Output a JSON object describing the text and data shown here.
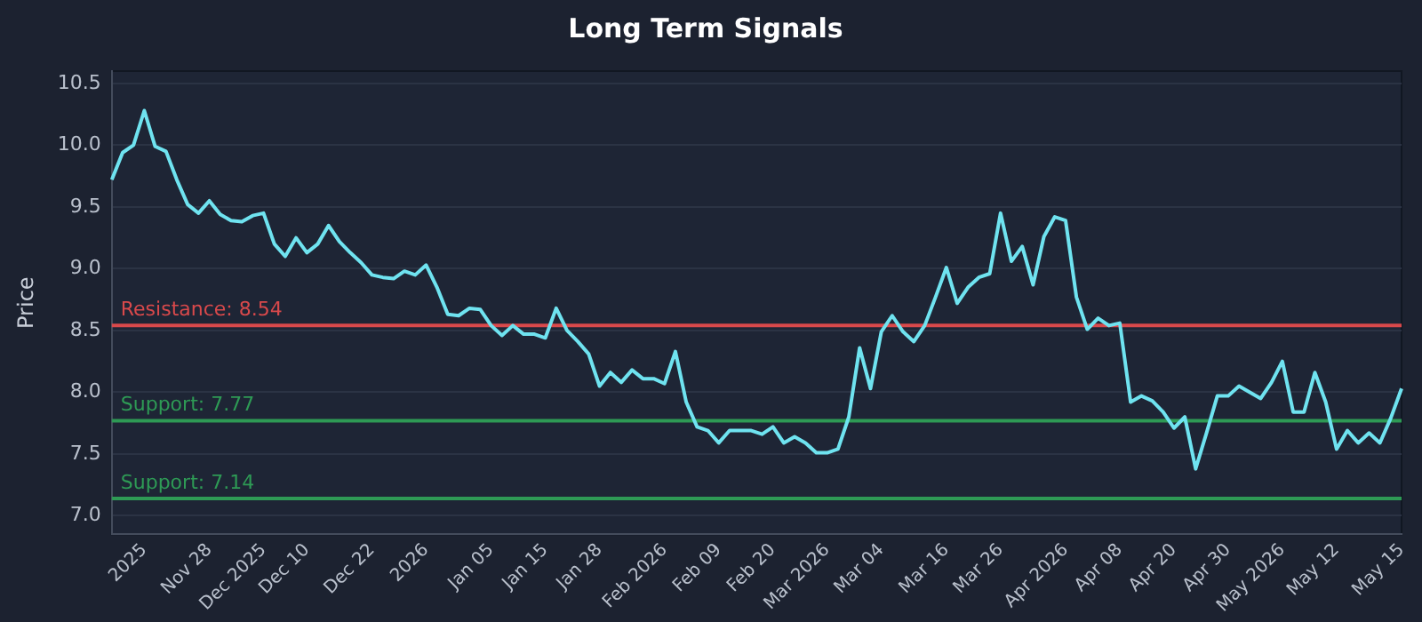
{
  "chart_data": {
    "type": "line",
    "title": "Long Term Signals",
    "ylabel": "Price",
    "categories": [
      null,
      null,
      null,
      "2025",
      null,
      null,
      null,
      null,
      null,
      "Nov 28",
      null,
      null,
      null,
      null,
      "Dec 2025",
      null,
      null,
      null,
      "Dec 10",
      null,
      null,
      null,
      null,
      null,
      "Dec 22",
      null,
      null,
      null,
      null,
      "2026",
      null,
      null,
      null,
      null,
      null,
      "Jan 05",
      null,
      null,
      null,
      null,
      "Jan 15",
      null,
      null,
      null,
      null,
      "Jan 28",
      null,
      null,
      null,
      null,
      null,
      "Feb 2026",
      null,
      null,
      null,
      null,
      "Feb 09",
      null,
      null,
      null,
      null,
      "Feb 20",
      null,
      null,
      null,
      null,
      "Mar 2026",
      null,
      null,
      null,
      null,
      "Mar 04",
      null,
      null,
      null,
      null,
      null,
      "Mar 16",
      null,
      null,
      null,
      null,
      "Mar 26",
      null,
      null,
      null,
      null,
      null,
      "Apr 2026",
      null,
      null,
      null,
      null,
      "Apr 08",
      null,
      null,
      null,
      null,
      "Apr 20",
      null,
      null,
      null,
      null,
      "Apr 30",
      null,
      null,
      null,
      null,
      "May 2026",
      null,
      null,
      null,
      null,
      "May 12",
      null,
      null,
      null,
      null,
      null,
      "May 15"
    ],
    "series": [
      {
        "color": "#6fe3f0",
        "values": [
          9.72,
          9.94,
          10.0,
          10.28,
          9.99,
          9.95,
          9.72,
          9.52,
          9.45,
          9.55,
          9.44,
          9.39,
          9.38,
          9.43,
          9.45,
          9.2,
          9.1,
          9.25,
          9.13,
          9.2,
          9.35,
          9.22,
          9.13,
          9.05,
          8.95,
          8.93,
          8.92,
          8.98,
          8.95,
          9.03,
          8.85,
          8.63,
          8.62,
          8.68,
          8.67,
          8.54,
          8.46,
          8.54,
          8.47,
          8.47,
          8.44,
          8.68,
          8.5,
          8.41,
          8.31,
          8.05,
          8.16,
          8.08,
          8.18,
          8.11,
          8.11,
          8.07,
          8.33,
          7.92,
          7.72,
          7.69,
          7.59,
          7.69,
          7.69,
          7.69,
          7.66,
          7.72,
          7.59,
          7.64,
          7.59,
          7.51,
          7.51,
          7.54,
          7.8,
          8.36,
          8.03,
          8.49,
          8.62,
          8.49,
          8.41,
          8.54,
          8.77,
          9.01,
          8.72,
          8.85,
          8.93,
          8.96,
          9.45,
          9.06,
          9.18,
          8.87,
          9.26,
          9.42,
          9.39,
          8.77,
          8.51,
          8.6,
          8.54,
          8.56,
          7.92,
          7.97,
          7.93,
          7.84,
          7.71,
          7.8,
          7.38,
          7.67,
          7.97,
          7.97,
          8.05,
          8.0,
          7.95,
          8.08,
          8.25,
          7.84,
          7.84,
          8.16,
          7.92,
          7.54,
          7.69,
          7.59,
          7.67,
          7.59,
          7.79,
          8.03
        ]
      }
    ],
    "ylim": [
      6.85,
      10.6
    ],
    "yticks": [
      {
        "value": 7,
        "label": "7.0"
      },
      {
        "value": 7.5,
        "label": "7.5"
      },
      {
        "value": 8,
        "label": "8.0"
      },
      {
        "value": 8.5,
        "label": "8.5"
      },
      {
        "value": 9,
        "label": "9.0"
      },
      {
        "value": 9.5,
        "label": "9.5"
      },
      {
        "value": 10,
        "label": "10.0"
      },
      {
        "value": 10.5,
        "label": "10.5"
      }
    ],
    "ref_lines": [
      {
        "axis": "y",
        "value": 8.54,
        "label": "Resistance: 8.54",
        "color": "#d9494b"
      },
      {
        "axis": "y",
        "value": 7.77,
        "label": "Support: 7.77",
        "color": "#2e9a55"
      },
      {
        "axis": "y",
        "value": 7.14,
        "label": "Support: 7.14",
        "color": "#2e9a55"
      }
    ],
    "grid": "y",
    "legend": false,
    "marker": "none",
    "line_style": "solid"
  }
}
